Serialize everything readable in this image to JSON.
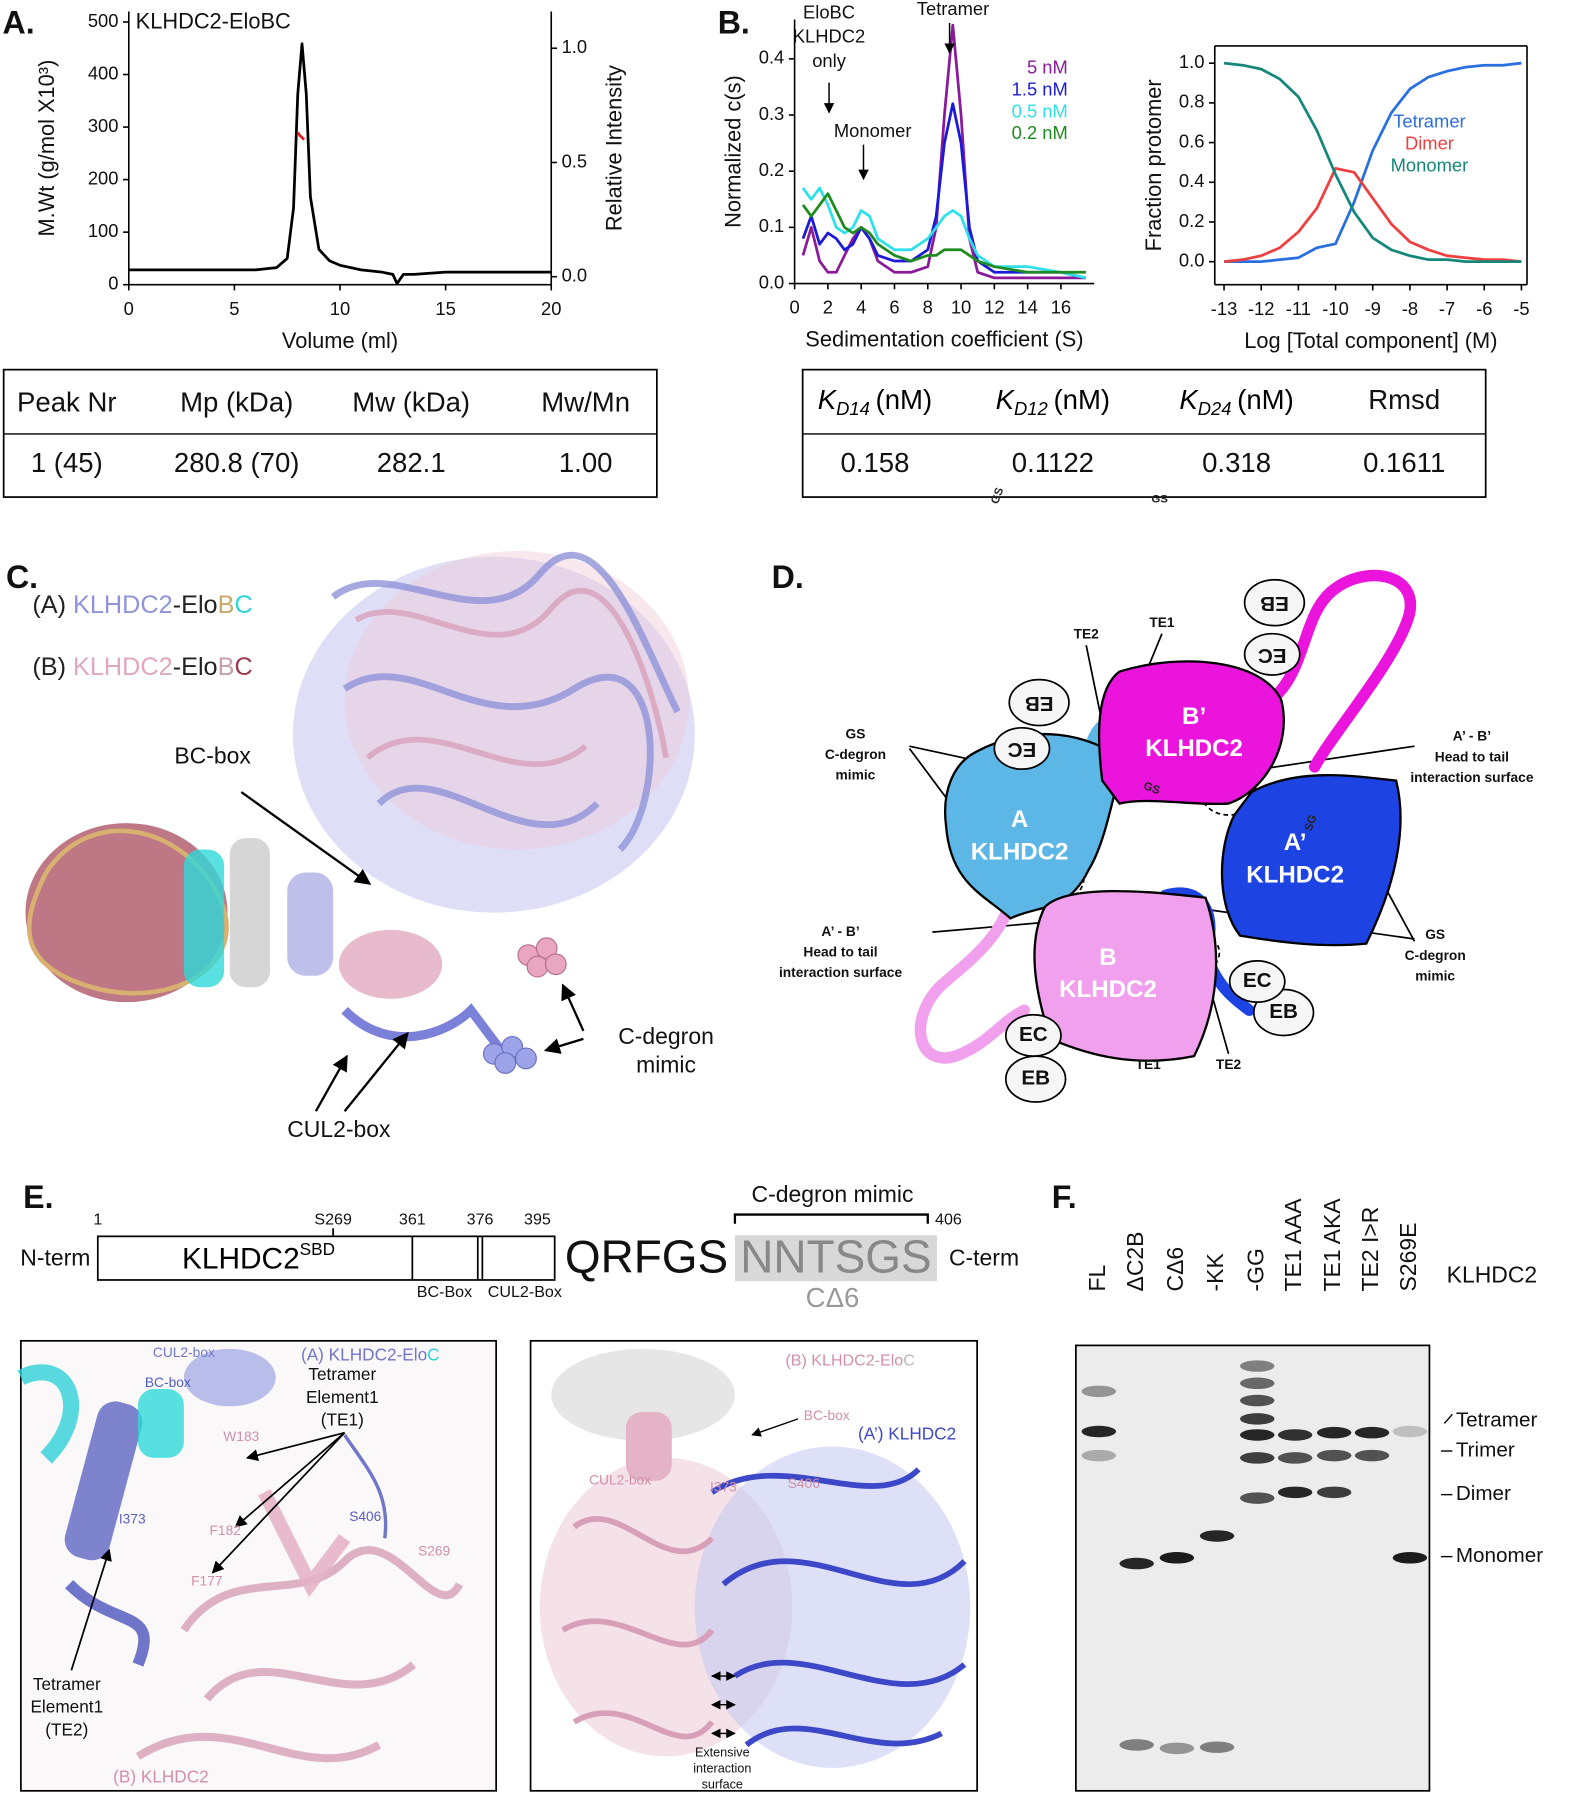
{
  "panel_labels": [
    "A.",
    "B.",
    "C.",
    "D.",
    "E.",
    "F."
  ],
  "chart_data": [
    {
      "type": "line",
      "title": "KLHDC2-EloBC",
      "x_label": "Volume (ml)",
      "y_label": "M.Wt (g/mol X10³)",
      "y2_label": "Relative Intensity",
      "xlim": [
        0,
        20
      ],
      "xticks": [
        0,
        5,
        10,
        15,
        20
      ],
      "ylim": [
        0,
        520
      ],
      "yticks": [
        0,
        100,
        200,
        300,
        400,
        500
      ],
      "y2lim": [
        -0.035,
        1.161
      ],
      "y2ticks": [
        {
          "value": 0,
          "label": "0.0"
        },
        0.5,
        {
          "value": 1,
          "label": "1.0"
        }
      ],
      "series": [
        {
          "color": "#000000",
          "axis": "y2",
          "x": [
            0,
            2,
            4,
            6,
            7,
            7.5,
            7.8,
            8.0,
            8.2,
            8.4,
            8.6,
            9,
            9.5,
            10,
            11,
            12,
            12.5,
            12.7,
            13,
            13.5,
            15,
            20
          ],
          "values": [
            0.03,
            0.03,
            0.03,
            0.03,
            0.04,
            0.08,
            0.3,
            0.8,
            1.02,
            0.8,
            0.35,
            0.12,
            0.07,
            0.05,
            0.03,
            0.02,
            0.01,
            -0.03,
            0.01,
            0.01,
            0.02,
            0.02
          ]
        },
        {
          "color": "#e02020",
          "x": [
            8.0,
            8.1,
            8.2,
            8.3
          ],
          "values": [
            290,
            284,
            280,
            276
          ]
        }
      ]
    },
    {
      "type": "line",
      "x_label": "Sedimentation coefficient (S)",
      "y_label": "Normalized c(s)",
      "annotations": [
        [
          "EloBC",
          "KLHDC2",
          "only"
        ],
        [
          "Monomer"
        ],
        [
          "Tetramer"
        ]
      ],
      "xlim": [
        0,
        18
      ],
      "xticks": [
        0,
        2,
        4,
        6,
        8,
        10,
        12,
        14,
        16
      ],
      "ylim": [
        0,
        0.47
      ],
      "yticks": [
        {
          "value": 0,
          "label": "0.0"
        },
        0.1,
        0.2,
        0.3,
        0.4
      ],
      "x": [
        0.5,
        1,
        1.5,
        2,
        2.5,
        3,
        3.5,
        4,
        4.5,
        5,
        6,
        7,
        8,
        8.5,
        9,
        9.5,
        10,
        10.5,
        11,
        12,
        14,
        16,
        17.5
      ],
      "series": [
        {
          "name": "5 nM",
          "color": "#8a1a9a",
          "values": [
            0.05,
            0.1,
            0.04,
            0.02,
            0.02,
            0.05,
            0.08,
            0.1,
            0.08,
            0.04,
            0.02,
            0.02,
            0.03,
            0.1,
            0.3,
            0.46,
            0.3,
            0.08,
            0.02,
            0.01,
            0.01,
            0.01,
            0.01
          ]
        },
        {
          "name": "1.5 nM",
          "color": "#1a1ad8",
          "values": [
            0.08,
            0.12,
            0.07,
            0.09,
            0.08,
            0.06,
            0.07,
            0.1,
            0.08,
            0.05,
            0.04,
            0.04,
            0.06,
            0.12,
            0.25,
            0.32,
            0.25,
            0.1,
            0.04,
            0.02,
            0.02,
            0.02,
            0.01
          ]
        },
        {
          "name": "0.5 nM",
          "color": "#2ee0e8",
          "values": [
            0.17,
            0.15,
            0.17,
            0.14,
            0.1,
            0.09,
            0.1,
            0.13,
            0.12,
            0.08,
            0.06,
            0.06,
            0.08,
            0.1,
            0.12,
            0.13,
            0.12,
            0.08,
            0.05,
            0.03,
            0.03,
            0.02,
            0.01
          ]
        },
        {
          "name": "0.2 nM",
          "color": "#1f8a1f",
          "values": [
            0.14,
            0.12,
            0.14,
            0.16,
            0.13,
            0.1,
            0.09,
            0.1,
            0.09,
            0.07,
            0.05,
            0.04,
            0.05,
            0.05,
            0.06,
            0.06,
            0.06,
            0.05,
            0.04,
            0.03,
            0.02,
            0.02,
            0.02
          ]
        }
      ]
    },
    {
      "type": "line",
      "x_label": "Log [Total component] (M)",
      "y_label": "Fraction protomer",
      "xlim": [
        -13.25,
        -4.85
      ],
      "xticks": [
        -13,
        -12,
        -11,
        -10,
        -9,
        -8,
        -7,
        -6,
        -5
      ],
      "ylim": [
        -0.116,
        1.087
      ],
      "yticks": [
        {
          "value": 0,
          "label": "0.0"
        },
        0.2,
        0.4,
        0.6,
        0.8,
        {
          "value": 1,
          "label": "1.0"
        }
      ],
      "x": [
        -13,
        -12.5,
        -12,
        -11.5,
        -11,
        -10.5,
        -10,
        -9.5,
        -9,
        -8.5,
        -8,
        -7.5,
        -7,
        -6.5,
        -6,
        -5.5,
        -5
      ],
      "series": [
        {
          "name": "Tetramer",
          "color": "#2a6fe0",
          "values": [
            0,
            0,
            0,
            0.01,
            0.02,
            0.07,
            0.09,
            0.3,
            0.56,
            0.75,
            0.87,
            0.93,
            0.96,
            0.98,
            0.99,
            0.99,
            1.0
          ]
        },
        {
          "name": "Dimer",
          "color": "#ee4040",
          "values": [
            0,
            0.01,
            0.03,
            0.07,
            0.15,
            0.27,
            0.47,
            0.45,
            0.32,
            0.19,
            0.1,
            0.06,
            0.03,
            0.02,
            0.01,
            0.01,
            0
          ]
        },
        {
          "name": "Monomer",
          "color": "#14877a",
          "values": [
            1.0,
            0.99,
            0.97,
            0.92,
            0.83,
            0.66,
            0.44,
            0.25,
            0.12,
            0.06,
            0.03,
            0.01,
            0.01,
            0,
            0,
            0,
            0
          ]
        }
      ]
    }
  ],
  "table_a": {
    "headers": [
      "Peak Nr",
      "Mp (kDa)",
      "Mw (kDa)",
      "Mw/Mn"
    ],
    "rows": [
      [
        "1 (45)",
        "280.8 (70)",
        "282.1",
        "1.00"
      ]
    ]
  },
  "table_b": {
    "headers": [
      {
        "symbol": "K",
        "subscript": "D14",
        "unit": "(nM)"
      },
      {
        "symbol": "K",
        "subscript": "D12",
        "unit": "(nM)"
      },
      {
        "symbol": "K",
        "subscript": "D24",
        "unit": "(nM)"
      },
      {
        "text": "Rmsd"
      }
    ],
    "rows": [
      [
        "0.158",
        "0.1122",
        "0.318",
        "0.1611"
      ]
    ]
  },
  "panel_c": {
    "legend": [
      [
        {
          "text": "(A) ",
          "color": "#222222"
        },
        {
          "text": "KLHDC2",
          "color": "#8f93d8"
        },
        {
          "text": "-Elo",
          "color": "#222222"
        },
        {
          "text": "B",
          "color": "#c8a96a"
        },
        {
          "text": "C",
          "color": "#2fd6d6"
        }
      ],
      [
        {
          "text": "(B) ",
          "color": "#222222"
        },
        {
          "text": "KLHDC2",
          "color": "#e0a8c0"
        },
        {
          "text": "-Elo",
          "color": "#222222"
        },
        {
          "text": "B",
          "color": "#c8a0a8"
        },
        {
          "text": "C",
          "color": "#9a3a50"
        }
      ]
    ],
    "bc_box": "BC-box",
    "c_degron": [
      "C-degron",
      "mimic"
    ],
    "cul2_box": "CUL2-box"
  },
  "panel_d": {
    "nodes": [
      {
        "name": "A",
        "label": "KLHDC2",
        "color": "#5cb6e6"
      },
      {
        "name": "B’",
        "label": "KLHDC2",
        "color": "#ea14dc"
      },
      {
        "name": "A’",
        "label": "KLHDC2",
        "color": "#1d44e2"
      },
      {
        "name": "B",
        "label": "KLHDC2",
        "color": "#f0a0ec"
      }
    ],
    "te_top": [
      "TE2",
      "TE1"
    ],
    "te_bottom": [
      "TE1",
      "TE2"
    ],
    "gs": [
      "GS",
      "C-degron",
      "mimic"
    ],
    "interface": [
      "A’ - B’",
      "Head to tail",
      "interaction surface"
    ],
    "elongins": [
      "EB",
      "EC"
    ],
    "tags": [
      "GS",
      "SG",
      "GS",
      "GS"
    ]
  },
  "panel_e": {
    "positions": [
      "1",
      "S269",
      "361",
      "376",
      "395",
      "406"
    ],
    "n_term": "N-term",
    "c_term": "C-term",
    "domain": {
      "name": "KLHDC2",
      "superscript": "SBD"
    },
    "boxes": [
      "BC-Box",
      "CUL2-Box"
    ],
    "sequence": [
      "QRFGS",
      "NNTSGS"
    ],
    "c_degron": "C-degron mimic",
    "deletion": "CΔ6",
    "left_view": {
      "title": [
        {
          "text": "(A) KLHDC2-Elo",
          "color": "#7076c8"
        },
        {
          "text": "C",
          "color": "#2fd0d8"
        }
      ],
      "labels": [
        "CUL2-box",
        "BC-box",
        "W183",
        "I373",
        "F182",
        "F177",
        "S406",
        "S269"
      ],
      "te1": [
        "Tetramer",
        "Element1",
        "(TE1)"
      ],
      "te2": [
        "Tetramer",
        "Element1",
        "(TE2)"
      ],
      "chain": "(B) KLHDC2"
    },
    "right_view": {
      "title": [
        {
          "text": "(B) KLHDC2-Elo",
          "color": "#d090a8"
        },
        {
          "text": "C",
          "color": "#b8b8b8"
        }
      ],
      "chain": "(A’) KLHDC2",
      "labels": [
        "BC-box",
        "S406",
        "CUL2-box",
        "I373"
      ],
      "interface": [
        "Extensive",
        "interaction",
        "surface"
      ]
    }
  },
  "panel_f": {
    "lanes": [
      "FL",
      "ΔC2B",
      "CΔ6",
      "-KK",
      "-GG",
      "TE1 AAA",
      "TE1 AKA",
      "TE2 I>R",
      "S269E"
    ],
    "protein": "KLHDC2",
    "bands": [
      "Tetramer",
      "Trimer",
      "Dimer",
      "Monomer"
    ]
  }
}
